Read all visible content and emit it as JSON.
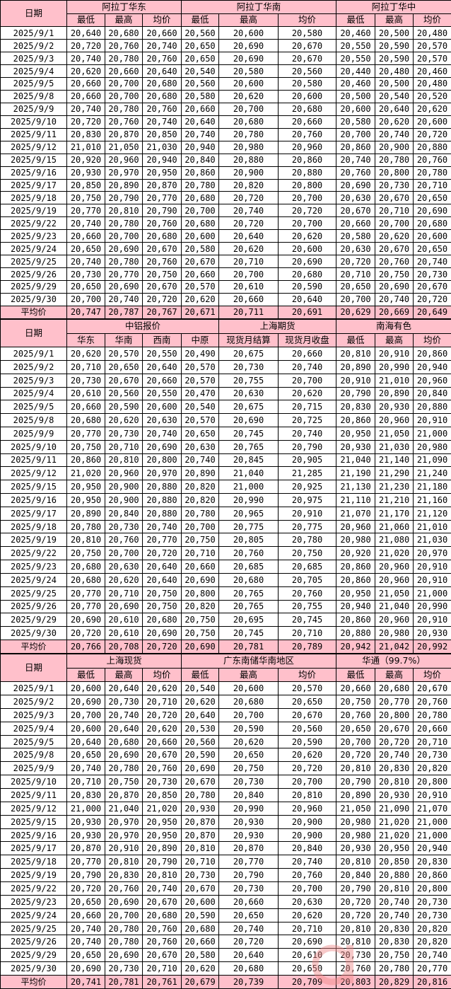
{
  "date_header": "日期",
  "avg_label": "平均价",
  "dates": [
    "2025/9/1",
    "2025/9/2",
    "2025/9/3",
    "2025/9/4",
    "2025/9/5",
    "2025/9/8",
    "2025/9/9",
    "2025/9/10",
    "2025/9/11",
    "2025/9/12",
    "2025/9/15",
    "2025/9/16",
    "2025/9/17",
    "2025/9/18",
    "2025/9/19",
    "2025/9/22",
    "2025/9/23",
    "2025/9/24",
    "2025/9/25",
    "2025/9/26",
    "2025/9/29",
    "2025/9/30"
  ],
  "header_color": "#ffc0cb",
  "watermark": "阿拉丁 aladdiny.com",
  "sections": [
    {
      "groups": [
        {
          "name": "阿拉丁华东",
          "cols": [
            "最低",
            "最高",
            "均价"
          ]
        },
        {
          "name": "阿拉丁华南",
          "cols": [
            "最低",
            "最高",
            "均价"
          ]
        },
        {
          "name": "阿拉丁华中",
          "cols": [
            "最低",
            "最高",
            "均价"
          ]
        }
      ],
      "rows": [
        [
          "20,640",
          "20,680",
          "20,660",
          "20,560",
          "20,600",
          "20,580",
          "20,460",
          "20,500",
          "20,480"
        ],
        [
          "20,720",
          "20,760",
          "20,740",
          "20,650",
          "20,690",
          "20,670",
          "20,550",
          "20,590",
          "20,570"
        ],
        [
          "20,740",
          "20,780",
          "20,760",
          "20,650",
          "20,690",
          "20,670",
          "20,550",
          "20,590",
          "20,570"
        ],
        [
          "20,620",
          "20,660",
          "20,640",
          "20,540",
          "20,580",
          "20,560",
          "20,440",
          "20,480",
          "20,460"
        ],
        [
          "20,660",
          "20,700",
          "20,680",
          "20,560",
          "20,600",
          "20,580",
          "20,460",
          "20,500",
          "20,480"
        ],
        [
          "20,660",
          "20,700",
          "20,680",
          "20,580",
          "20,620",
          "20,600",
          "20,500",
          "20,540",
          "20,520"
        ],
        [
          "20,740",
          "20,780",
          "20,760",
          "20,660",
          "20,700",
          "20,680",
          "20,600",
          "20,640",
          "20,620"
        ],
        [
          "20,720",
          "20,760",
          "20,740",
          "20,640",
          "20,680",
          "20,660",
          "20,580",
          "20,620",
          "20,600"
        ],
        [
          "20,830",
          "20,870",
          "20,850",
          "20,740",
          "20,780",
          "20,760",
          "20,700",
          "20,740",
          "20,720"
        ],
        [
          "21,010",
          "21,050",
          "21,030",
          "20,940",
          "20,980",
          "20,960",
          "20,860",
          "20,900",
          "20,880"
        ],
        [
          "20,920",
          "20,960",
          "20,940",
          "20,840",
          "20,880",
          "20,860",
          "20,740",
          "20,780",
          "20,760"
        ],
        [
          "20,930",
          "20,970",
          "20,950",
          "20,860",
          "20,900",
          "20,880",
          "20,760",
          "20,800",
          "20,780"
        ],
        [
          "20,850",
          "20,890",
          "20,870",
          "20,780",
          "20,820",
          "20,800",
          "20,690",
          "20,730",
          "20,710"
        ],
        [
          "20,750",
          "20,790",
          "20,770",
          "20,680",
          "20,720",
          "20,700",
          "20,630",
          "20,670",
          "20,650"
        ],
        [
          "20,770",
          "20,810",
          "20,790",
          "20,700",
          "20,740",
          "20,720",
          "20,670",
          "20,710",
          "20,690"
        ],
        [
          "20,740",
          "20,780",
          "20,760",
          "20,680",
          "20,720",
          "20,700",
          "20,660",
          "20,700",
          "20,680"
        ],
        [
          "20,660",
          "20,700",
          "20,680",
          "20,600",
          "20,640",
          "20,620",
          "20,580",
          "20,620",
          "20,600"
        ],
        [
          "20,650",
          "20,690",
          "20,670",
          "20,580",
          "20,620",
          "20,600",
          "20,630",
          "20,670",
          "20,650"
        ],
        [
          "20,740",
          "20,780",
          "20,760",
          "20,670",
          "20,710",
          "20,690",
          "20,720",
          "20,760",
          "20,740"
        ],
        [
          "20,730",
          "20,770",
          "20,750",
          "20,660",
          "20,700",
          "20,680",
          "20,710",
          "20,750",
          "20,730"
        ],
        [
          "20,650",
          "20,690",
          "20,670",
          "20,570",
          "20,610",
          "20,590",
          "20,650",
          "20,690",
          "20,670"
        ],
        [
          "20,700",
          "20,740",
          "20,720",
          "20,620",
          "20,660",
          "20,640",
          "20,700",
          "20,740",
          "20,720"
        ]
      ],
      "avg": [
        "20,747",
        "20,787",
        "20,767",
        "20,671",
        "20,711",
        "20,691",
        "20,629",
        "20,669",
        "20,649"
      ]
    },
    {
      "groups": [
        {
          "name": "中铝报价",
          "cols": [
            "华东",
            "华南",
            "西南",
            "中原"
          ]
        },
        {
          "name": "上海期货",
          "cols": [
            "现货月结算",
            "现货月收盘"
          ]
        },
        {
          "name": "南海有色",
          "cols": [
            "最低",
            "最高",
            "均价"
          ]
        }
      ],
      "rows": [
        [
          "20,620",
          "20,570",
          "20,550",
          "20,490",
          "20,675",
          "20,660",
          "20,810",
          "20,910",
          "20,860"
        ],
        [
          "20,710",
          "20,650",
          "20,640",
          "20,570",
          "20,730",
          "20,740",
          "20,890",
          "20,990",
          "20,940"
        ],
        [
          "20,730",
          "20,670",
          "20,660",
          "20,570",
          "20,755",
          "20,700",
          "20,910",
          "21,010",
          "20,960"
        ],
        [
          "20,610",
          "20,560",
          "20,550",
          "20,470",
          "20,630",
          "20,620",
          "20,790",
          "20,890",
          "20,840"
        ],
        [
          "20,660",
          "20,590",
          "20,600",
          "20,540",
          "20,675",
          "20,715",
          "20,830",
          "20,930",
          "20,880"
        ],
        [
          "20,680",
          "20,620",
          "20,630",
          "20,570",
          "20,690",
          "20,725",
          "20,860",
          "20,960",
          "20,910"
        ],
        [
          "20,770",
          "20,730",
          "20,740",
          "20,650",
          "20,745",
          "20,740",
          "20,950",
          "21,050",
          "21,000"
        ],
        [
          "20,750",
          "20,710",
          "20,690",
          "20,630",
          "20,765",
          "20,790",
          "20,930",
          "21,030",
          "20,980"
        ],
        [
          "20,860",
          "20,810",
          "20,800",
          "20,740",
          "20,845",
          "20,905",
          "21,040",
          "21,140",
          "21,090"
        ],
        [
          "21,020",
          "20,960",
          "20,970",
          "20,890",
          "21,040",
          "21,285",
          "21,190",
          "21,290",
          "21,240"
        ],
        [
          "20,950",
          "20,900",
          "20,880",
          "20,820",
          "21,000",
          "20,925",
          "21,130",
          "21,230",
          "21,180"
        ],
        [
          "20,950",
          "20,900",
          "20,880",
          "20,820",
          "20,990",
          "20,975",
          "21,110",
          "21,210",
          "21,160"
        ],
        [
          "20,890",
          "20,840",
          "20,880",
          "20,780",
          "20,965",
          "20,910",
          "21,070",
          "21,170",
          "21,120"
        ],
        [
          "20,780",
          "20,730",
          "20,740",
          "20,700",
          "20,775",
          "20,775",
          "20,960",
          "21,060",
          "21,010"
        ],
        [
          "20,810",
          "20,760",
          "20,770",
          "20,750",
          "20,805",
          "20,780",
          "20,980",
          "21,080",
          "21,030"
        ],
        [
          "20,750",
          "20,700",
          "20,720",
          "20,710",
          "20,760",
          "20,750",
          "20,920",
          "21,020",
          "20,970"
        ],
        [
          "20,680",
          "20,630",
          "20,640",
          "20,660",
          "20,685",
          "20,685",
          "20,860",
          "20,960",
          "20,910"
        ],
        [
          "20,680",
          "20,620",
          "20,640",
          "20,690",
          "20,680",
          "20,705",
          "20,860",
          "20,960",
          "20,910"
        ],
        [
          "20,770",
          "20,710",
          "20,750",
          "20,800",
          "20,765",
          "20,760",
          "20,950",
          "21,050",
          "21,000"
        ],
        [
          "20,770",
          "20,690",
          "20,750",
          "20,820",
          "20,765",
          "20,755",
          "20,940",
          "21,040",
          "20,990"
        ],
        [
          "20,690",
          "20,610",
          "20,680",
          "20,750",
          "20,695",
          "20,745",
          "20,860",
          "20,960",
          "20,910"
        ],
        [
          "20,720",
          "20,610",
          "20,690",
          "20,750",
          "20,745",
          "20,710",
          "20,880",
          "20,980",
          "20,930"
        ]
      ],
      "avg": [
        "20,766",
        "20,708",
        "20,720",
        "20,690",
        "20,781",
        "20,789",
        "20,942",
        "21,042",
        "20,992"
      ]
    },
    {
      "groups": [
        {
          "name": "上海现货",
          "cols": [
            "最低",
            "最高",
            "均价"
          ]
        },
        {
          "name": "广东南储华南地区",
          "cols": [
            "最低",
            "最高",
            "均价"
          ]
        },
        {
          "name": "华通（99.7%）",
          "cols": [
            "最低",
            "最高",
            "均价"
          ]
        }
      ],
      "rows": [
        [
          "20,600",
          "20,640",
          "20,620",
          "20,540",
          "20,600",
          "20,570",
          "20,660",
          "20,680",
          "20,670"
        ],
        [
          "20,690",
          "20,730",
          "20,710",
          "20,620",
          "20,680",
          "20,650",
          "20,750",
          "20,770",
          "20,760"
        ],
        [
          "20,700",
          "20,740",
          "20,720",
          "20,640",
          "20,700",
          "20,670",
          "20,760",
          "20,800",
          "20,780"
        ],
        [
          "20,600",
          "20,640",
          "20,620",
          "20,530",
          "20,590",
          "20,560",
          "20,650",
          "20,670",
          "20,660"
        ],
        [
          "20,640",
          "20,680",
          "20,660",
          "20,560",
          "20,620",
          "20,590",
          "20,700",
          "20,720",
          "20,710"
        ],
        [
          "20,650",
          "20,690",
          "20,670",
          "20,590",
          "20,650",
          "20,620",
          "20,720",
          "20,740",
          "20,730"
        ],
        [
          "20,740",
          "20,780",
          "20,760",
          "20,690",
          "20,750",
          "20,720",
          "20,810",
          "20,830",
          "20,820"
        ],
        [
          "20,710",
          "20,750",
          "20,730",
          "20,670",
          "20,730",
          "20,700",
          "20,790",
          "20,810",
          "20,800"
        ],
        [
          "20,830",
          "20,870",
          "20,850",
          "20,780",
          "20,840",
          "20,810",
          "20,890",
          "20,930",
          "20,910"
        ],
        [
          "21,000",
          "21,040",
          "21,020",
          "20,930",
          "20,990",
          "20,960",
          "21,050",
          "21,090",
          "21,070"
        ],
        [
          "20,930",
          "20,970",
          "20,950",
          "20,870",
          "20,930",
          "20,900",
          "20,980",
          "21,020",
          "21,000"
        ],
        [
          "20,930",
          "20,970",
          "20,950",
          "20,870",
          "20,930",
          "20,900",
          "20,980",
          "21,020",
          "21,000"
        ],
        [
          "20,870",
          "20,910",
          "20,890",
          "20,810",
          "20,870",
          "20,840",
          "20,930",
          "20,950",
          "20,940"
        ],
        [
          "20,770",
          "20,810",
          "20,790",
          "20,710",
          "20,770",
          "20,740",
          "20,810",
          "20,850",
          "20,830"
        ],
        [
          "20,790",
          "20,830",
          "20,810",
          "20,730",
          "20,790",
          "20,760",
          "20,840",
          "20,880",
          "20,860"
        ],
        [
          "20,720",
          "20,760",
          "20,740",
          "20,670",
          "20,730",
          "20,700",
          "20,790",
          "20,810",
          "20,800"
        ],
        [
          "20,650",
          "20,690",
          "20,670",
          "20,600",
          "20,660",
          "20,630",
          "20,720",
          "20,740",
          "20,730"
        ],
        [
          "20,660",
          "20,700",
          "20,680",
          "20,590",
          "20,650",
          "20,620",
          "20,720",
          "20,740",
          "20,730"
        ],
        [
          "20,740",
          "20,780",
          "20,760",
          "20,680",
          "20,740",
          "20,710",
          "20,810",
          "20,830",
          "20,820"
        ],
        [
          "20,740",
          "20,780",
          "20,760",
          "20,660",
          "20,720",
          "20,690",
          "20,810",
          "20,830",
          "20,820"
        ],
        [
          "20,650",
          "20,690",
          "20,670",
          "20,580",
          "20,640",
          "20,610",
          "20,730",
          "20,750",
          "20,740"
        ],
        [
          "20,690",
          "20,730",
          "20,710",
          "20,620",
          "20,680",
          "20,650",
          "20,760",
          "20,780",
          "20,770"
        ]
      ],
      "avg": [
        "20,741",
        "20,781",
        "20,761",
        "20,679",
        "20,739",
        "20,709",
        "20,803",
        "20,829",
        "20,816"
      ]
    }
  ]
}
